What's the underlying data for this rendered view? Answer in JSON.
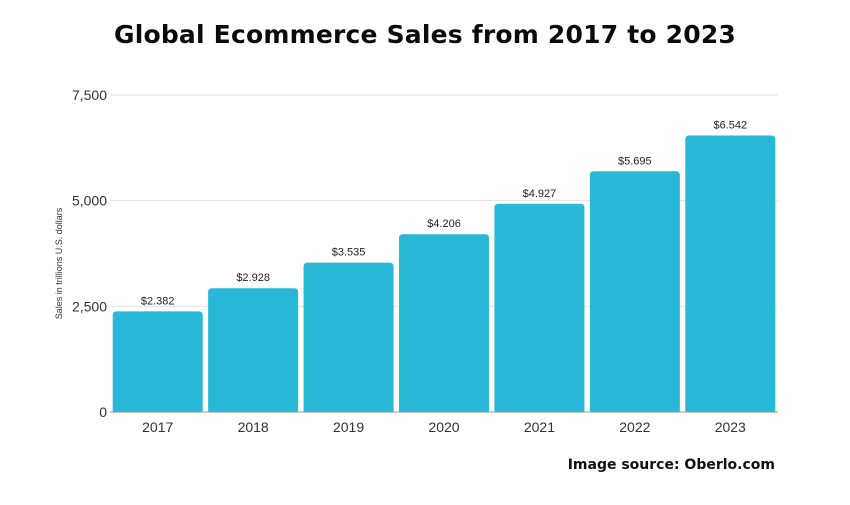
{
  "chart_data": {
    "type": "bar",
    "title": "Global Ecommerce Sales from 2017 to 2023",
    "xlabel": "",
    "ylabel": "Sales in trillions U.S. dollars",
    "categories": [
      "2017",
      "2018",
      "2019",
      "2020",
      "2021",
      "2022",
      "2023"
    ],
    "values": [
      2382,
      2928,
      3535,
      4206,
      4927,
      5695,
      6542
    ],
    "data_labels": [
      "$2.382",
      "$2.928",
      "$3.535",
      "$4.206",
      "$4.927",
      "$5.695",
      "$6.542"
    ],
    "ylim": [
      0,
      7500
    ],
    "yticks": [
      0,
      2500,
      5000,
      7500
    ],
    "ytick_labels": [
      "0",
      "2,500",
      "5,000",
      "7,500"
    ],
    "grid": true,
    "legend": "none",
    "bar_color": "#29b8d8"
  },
  "footer": {
    "source": "Image source: Oberlo.com"
  }
}
